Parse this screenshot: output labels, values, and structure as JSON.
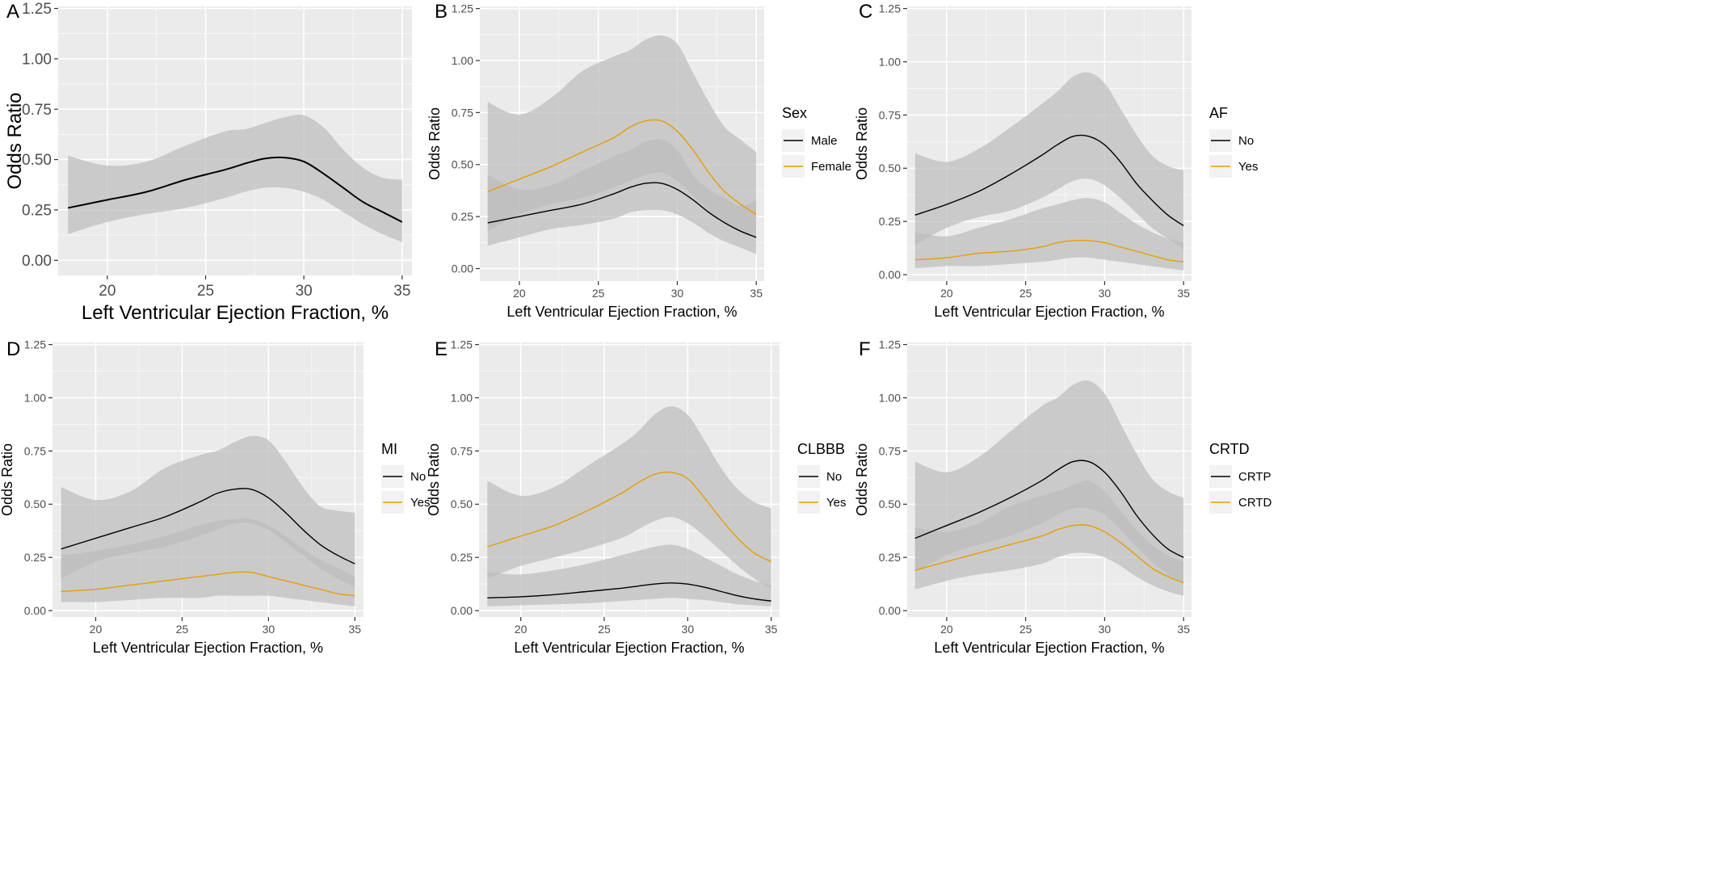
{
  "colors": {
    "panel_bg": "#ebebeb",
    "grid_major": "#ffffff",
    "ribbon": "#bdbdbd",
    "series_black": "#000000",
    "series_orange": "#e69f00",
    "axis_text": "#4d4d4d",
    "title_text": "#000000"
  },
  "chart_data": [
    {
      "panel": "A",
      "type": "line",
      "xlabel": "Left Ventricular Ejection Fraction, %",
      "ylabel": "Odds Ratio",
      "xlim": [
        17.5,
        35.5
      ],
      "ylim": [
        -0.075,
        1.26
      ],
      "x_ticks": [
        20,
        25,
        30,
        35
      ],
      "y_ticks": [
        0.0,
        0.25,
        0.5,
        0.75,
        1.0,
        1.25
      ],
      "x_tick_labels": [
        "20",
        "25",
        "30",
        "35"
      ],
      "y_tick_labels": [
        "0.00",
        "0.25",
        "0.50",
        "0.75",
        "1.00",
        "1.25"
      ],
      "legend": null,
      "series": [
        {
          "color": "#000000",
          "x": [
            18,
            20,
            22,
            24,
            26,
            27,
            28,
            29,
            30,
            31,
            32,
            33,
            34,
            35
          ],
          "y": [
            0.26,
            0.3,
            0.34,
            0.4,
            0.45,
            0.48,
            0.505,
            0.51,
            0.49,
            0.43,
            0.36,
            0.29,
            0.24,
            0.19
          ],
          "lower": [
            0.13,
            0.19,
            0.23,
            0.26,
            0.31,
            0.34,
            0.36,
            0.36,
            0.34,
            0.3,
            0.24,
            0.18,
            0.13,
            0.09
          ],
          "upper": [
            0.52,
            0.47,
            0.49,
            0.57,
            0.64,
            0.65,
            0.68,
            0.71,
            0.72,
            0.66,
            0.55,
            0.46,
            0.41,
            0.4
          ]
        }
      ]
    },
    {
      "panel": "B",
      "type": "line",
      "xlabel": "Left Ventricular Ejection Fraction, %",
      "ylabel": "Odds Ratio",
      "xlim": [
        17.5,
        35.5
      ],
      "ylim": [
        -0.06,
        1.26
      ],
      "x_ticks": [
        20,
        25,
        30,
        35
      ],
      "y_ticks": [
        0.0,
        0.25,
        0.5,
        0.75,
        1.0,
        1.25
      ],
      "x_tick_labels": [
        "20",
        "25",
        "30",
        "35"
      ],
      "y_tick_labels": [
        "0.00",
        "0.25",
        "0.50",
        "0.75",
        "1.00",
        "1.25"
      ],
      "legend": {
        "title": "Sex",
        "position": "right",
        "labels": [
          "Male",
          "Female"
        ]
      },
      "series": [
        {
          "name": "Male",
          "color": "#000000",
          "x": [
            18,
            20,
            22,
            24,
            26,
            27,
            28,
            29,
            30,
            31,
            32,
            33,
            34,
            35
          ],
          "y": [
            0.22,
            0.25,
            0.28,
            0.31,
            0.36,
            0.39,
            0.41,
            0.41,
            0.38,
            0.33,
            0.27,
            0.22,
            0.18,
            0.15
          ],
          "lower": [
            0.11,
            0.15,
            0.19,
            0.21,
            0.24,
            0.27,
            0.28,
            0.28,
            0.26,
            0.22,
            0.17,
            0.13,
            0.1,
            0.07
          ],
          "upper": [
            0.45,
            0.38,
            0.4,
            0.47,
            0.54,
            0.57,
            0.61,
            0.62,
            0.57,
            0.45,
            0.38,
            0.34,
            0.3,
            0.33
          ]
        },
        {
          "name": "Female",
          "color": "#e69f00",
          "x": [
            18,
            20,
            22,
            24,
            26,
            27,
            28,
            29,
            30,
            31,
            32,
            33,
            34,
            35
          ],
          "y": [
            0.37,
            0.43,
            0.49,
            0.56,
            0.63,
            0.68,
            0.71,
            0.71,
            0.66,
            0.57,
            0.46,
            0.37,
            0.31,
            0.26
          ],
          "lower": [
            0.18,
            0.26,
            0.31,
            0.34,
            0.39,
            0.42,
            0.45,
            0.46,
            0.42,
            0.35,
            0.28,
            0.22,
            0.18,
            0.14
          ],
          "upper": [
            0.8,
            0.74,
            0.82,
            0.95,
            1.02,
            1.05,
            1.1,
            1.12,
            1.08,
            0.94,
            0.8,
            0.68,
            0.62,
            0.56
          ]
        }
      ]
    },
    {
      "panel": "C",
      "type": "line",
      "xlabel": "Left Ventricular Ejection Fraction, %",
      "ylabel": "Odds Ratio",
      "xlim": [
        17.5,
        35.5
      ],
      "ylim": [
        -0.03,
        1.26
      ],
      "x_ticks": [
        20,
        25,
        30,
        35
      ],
      "y_ticks": [
        0.0,
        0.25,
        0.5,
        0.75,
        1.0,
        1.25
      ],
      "x_tick_labels": [
        "20",
        "25",
        "30",
        "35"
      ],
      "y_tick_labels": [
        "0.00",
        "0.25",
        "0.50",
        "0.75",
        "1.00",
        "1.25"
      ],
      "legend": {
        "title": "AF",
        "position": "right",
        "labels": [
          "No",
          "Yes"
        ]
      },
      "series": [
        {
          "name": "No",
          "color": "#000000",
          "x": [
            18,
            20,
            22,
            24,
            26,
            27,
            28,
            29,
            30,
            31,
            32,
            33,
            34,
            35
          ],
          "y": [
            0.28,
            0.33,
            0.39,
            0.47,
            0.56,
            0.61,
            0.65,
            0.65,
            0.61,
            0.53,
            0.43,
            0.35,
            0.28,
            0.23
          ],
          "lower": [
            0.14,
            0.22,
            0.27,
            0.3,
            0.36,
            0.4,
            0.44,
            0.45,
            0.42,
            0.36,
            0.29,
            0.22,
            0.17,
            0.12
          ],
          "upper": [
            0.57,
            0.53,
            0.59,
            0.69,
            0.8,
            0.86,
            0.93,
            0.95,
            0.9,
            0.78,
            0.66,
            0.56,
            0.51,
            0.49
          ]
        },
        {
          "name": "Yes",
          "color": "#e69f00",
          "x": [
            18,
            20,
            22,
            24,
            26,
            27,
            28,
            29,
            30,
            31,
            32,
            33,
            34,
            35
          ],
          "y": [
            0.07,
            0.08,
            0.1,
            0.11,
            0.13,
            0.15,
            0.16,
            0.16,
            0.15,
            0.13,
            0.11,
            0.09,
            0.07,
            0.06
          ],
          "lower": [
            0.03,
            0.04,
            0.04,
            0.05,
            0.06,
            0.07,
            0.08,
            0.08,
            0.07,
            0.06,
            0.05,
            0.04,
            0.03,
            0.02
          ],
          "upper": [
            0.2,
            0.18,
            0.22,
            0.26,
            0.31,
            0.33,
            0.35,
            0.36,
            0.34,
            0.29,
            0.24,
            0.2,
            0.17,
            0.15
          ]
        }
      ]
    },
    {
      "panel": "D",
      "type": "line",
      "xlabel": "Left Ventricular Ejection Fraction, %",
      "ylabel": "Odds Ratio",
      "xlim": [
        17.5,
        35.5
      ],
      "ylim": [
        -0.03,
        1.26
      ],
      "x_ticks": [
        20,
        25,
        30,
        35
      ],
      "y_ticks": [
        0.0,
        0.25,
        0.5,
        0.75,
        1.0,
        1.25
      ],
      "x_tick_labels": [
        "20",
        "25",
        "30",
        "35"
      ],
      "y_tick_labels": [
        "0.00",
        "0.25",
        "0.50",
        "0.75",
        "1.00",
        "1.25"
      ],
      "legend": {
        "title": "MI",
        "position": "right",
        "labels": [
          "No",
          "Yes"
        ]
      },
      "series": [
        {
          "name": "No",
          "color": "#000000",
          "x": [
            18,
            20,
            22,
            24,
            26,
            27,
            28,
            29,
            30,
            31,
            32,
            33,
            34,
            35
          ],
          "y": [
            0.29,
            0.34,
            0.39,
            0.44,
            0.51,
            0.55,
            0.57,
            0.57,
            0.53,
            0.46,
            0.38,
            0.31,
            0.26,
            0.22
          ],
          "lower": [
            0.15,
            0.23,
            0.27,
            0.3,
            0.35,
            0.38,
            0.41,
            0.41,
            0.38,
            0.32,
            0.26,
            0.2,
            0.15,
            0.11
          ],
          "upper": [
            0.58,
            0.52,
            0.56,
            0.67,
            0.73,
            0.75,
            0.79,
            0.82,
            0.8,
            0.7,
            0.58,
            0.49,
            0.47,
            0.46
          ]
        },
        {
          "name": "Yes",
          "color": "#e69f00",
          "x": [
            18,
            20,
            22,
            24,
            26,
            27,
            28,
            29,
            30,
            31,
            32,
            33,
            34,
            35
          ],
          "y": [
            0.09,
            0.1,
            0.12,
            0.14,
            0.16,
            0.17,
            0.18,
            0.18,
            0.16,
            0.14,
            0.12,
            0.1,
            0.08,
            0.07
          ],
          "lower": [
            0.04,
            0.04,
            0.05,
            0.06,
            0.06,
            0.07,
            0.07,
            0.07,
            0.07,
            0.06,
            0.05,
            0.04,
            0.03,
            0.02
          ],
          "upper": [
            0.26,
            0.28,
            0.31,
            0.35,
            0.4,
            0.42,
            0.43,
            0.43,
            0.4,
            0.35,
            0.29,
            0.24,
            0.2,
            0.16
          ]
        }
      ]
    },
    {
      "panel": "E",
      "type": "line",
      "xlabel": "Left Ventricular Ejection Fraction, %",
      "ylabel": "Odds Ratio",
      "xlim": [
        17.5,
        35.5
      ],
      "ylim": [
        -0.03,
        1.26
      ],
      "x_ticks": [
        20,
        25,
        30,
        35
      ],
      "y_ticks": [
        0.0,
        0.25,
        0.5,
        0.75,
        1.0,
        1.25
      ],
      "x_tick_labels": [
        "20",
        "25",
        "30",
        "35"
      ],
      "y_tick_labels": [
        "0.00",
        "0.25",
        "0.50",
        "0.75",
        "1.00",
        "1.25"
      ],
      "legend": {
        "title": "CLBBB",
        "position": "right",
        "labels": [
          "No",
          "Yes"
        ]
      },
      "series": [
        {
          "name": "No",
          "color": "#000000",
          "x": [
            18,
            20,
            22,
            24,
            26,
            27,
            28,
            29,
            30,
            31,
            32,
            33,
            34,
            35
          ],
          "y": [
            0.06,
            0.065,
            0.075,
            0.09,
            0.105,
            0.115,
            0.125,
            0.13,
            0.125,
            0.11,
            0.09,
            0.07,
            0.055,
            0.045
          ],
          "lower": [
            0.02,
            0.025,
            0.03,
            0.035,
            0.045,
            0.05,
            0.055,
            0.06,
            0.055,
            0.05,
            0.04,
            0.03,
            0.025,
            0.02
          ],
          "upper": [
            0.18,
            0.17,
            0.19,
            0.22,
            0.26,
            0.28,
            0.3,
            0.31,
            0.29,
            0.25,
            0.21,
            0.17,
            0.14,
            0.12
          ]
        },
        {
          "name": "Yes",
          "color": "#e69f00",
          "x": [
            18,
            20,
            22,
            24,
            26,
            27,
            28,
            29,
            30,
            31,
            32,
            33,
            34,
            35
          ],
          "y": [
            0.3,
            0.35,
            0.4,
            0.47,
            0.55,
            0.6,
            0.64,
            0.65,
            0.62,
            0.53,
            0.43,
            0.34,
            0.27,
            0.23
          ],
          "lower": [
            0.15,
            0.21,
            0.25,
            0.29,
            0.34,
            0.38,
            0.42,
            0.44,
            0.41,
            0.35,
            0.28,
            0.21,
            0.15,
            0.1
          ],
          "upper": [
            0.61,
            0.54,
            0.58,
            0.68,
            0.78,
            0.84,
            0.92,
            0.96,
            0.92,
            0.8,
            0.67,
            0.57,
            0.51,
            0.48
          ]
        }
      ]
    },
    {
      "panel": "F",
      "type": "line",
      "xlabel": "Left Ventricular Ejection Fraction, %",
      "ylabel": "Odds Ratio",
      "xlim": [
        17.5,
        35.5
      ],
      "ylim": [
        -0.03,
        1.26
      ],
      "x_ticks": [
        20,
        25,
        30,
        35
      ],
      "y_ticks": [
        0.0,
        0.25,
        0.5,
        0.75,
        1.0,
        1.25
      ],
      "x_tick_labels": [
        "20",
        "25",
        "30",
        "35"
      ],
      "y_tick_labels": [
        "0.00",
        "0.25",
        "0.50",
        "0.75",
        "1.00",
        "1.25"
      ],
      "legend": {
        "title": "CRTD",
        "position": "right",
        "labels": [
          "CRTP",
          "CRTD"
        ]
      },
      "series": [
        {
          "name": "CRTP",
          "color": "#000000",
          "x": [
            18,
            20,
            22,
            24,
            26,
            27,
            28,
            29,
            30,
            31,
            32,
            33,
            34,
            35
          ],
          "y": [
            0.34,
            0.4,
            0.46,
            0.53,
            0.61,
            0.66,
            0.7,
            0.7,
            0.65,
            0.56,
            0.45,
            0.36,
            0.29,
            0.25
          ],
          "lower": [
            0.18,
            0.26,
            0.31,
            0.35,
            0.41,
            0.45,
            0.48,
            0.48,
            0.45,
            0.38,
            0.3,
            0.23,
            0.17,
            0.13
          ],
          "upper": [
            0.7,
            0.65,
            0.72,
            0.84,
            0.96,
            1.0,
            1.06,
            1.08,
            1.02,
            0.88,
            0.74,
            0.62,
            0.56,
            0.53
          ]
        },
        {
          "name": "CRTD",
          "color": "#e69f00",
          "x": [
            18,
            20,
            22,
            24,
            26,
            27,
            28,
            29,
            30,
            31,
            32,
            33,
            34,
            35
          ],
          "y": [
            0.19,
            0.23,
            0.27,
            0.31,
            0.35,
            0.38,
            0.4,
            0.4,
            0.37,
            0.32,
            0.26,
            0.2,
            0.16,
            0.13
          ],
          "lower": [
            0.1,
            0.14,
            0.17,
            0.19,
            0.22,
            0.25,
            0.27,
            0.27,
            0.25,
            0.21,
            0.16,
            0.12,
            0.09,
            0.07
          ],
          "upper": [
            0.39,
            0.37,
            0.41,
            0.49,
            0.54,
            0.56,
            0.59,
            0.61,
            0.56,
            0.47,
            0.38,
            0.31,
            0.26,
            0.23
          ]
        }
      ]
    }
  ]
}
